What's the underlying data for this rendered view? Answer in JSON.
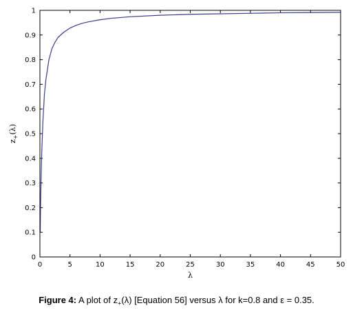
{
  "chart_data": {
    "type": "line",
    "title": "",
    "xlabel": "λ",
    "ylabel_base": "z",
    "ylabel_sub": "+",
    "ylabel_arg": "(λ)",
    "xlim": [
      0,
      50
    ],
    "ylim": [
      0,
      1
    ],
    "xticks": [
      0,
      5,
      10,
      15,
      20,
      25,
      30,
      35,
      40,
      45,
      50
    ],
    "yticks": [
      0,
      0.1,
      0.2,
      0.3,
      0.4,
      0.5,
      0.6,
      0.7,
      0.8,
      0.9,
      1
    ],
    "xtick_labels": [
      "0",
      "5",
      "10",
      "15",
      "20",
      "25",
      "30",
      "35",
      "40",
      "45",
      "50"
    ],
    "ytick_labels": [
      "0",
      "0.1",
      "0.2",
      "0.3",
      "0.4",
      "0.5",
      "0.6",
      "0.7",
      "0.8",
      "0.9",
      "1"
    ],
    "grid": false,
    "series": [
      {
        "line_color": "#3b3b8f",
        "x": [
          0.05,
          0.1,
          0.2,
          0.3,
          0.5,
          0.75,
          1,
          1.5,
          2,
          2.5,
          3,
          4,
          5,
          6,
          7,
          8,
          10,
          12,
          15,
          20,
          25,
          30,
          35,
          40,
          45,
          50
        ],
        "y": [
          0.1,
          0.2,
          0.32,
          0.42,
          0.55,
          0.66,
          0.72,
          0.8,
          0.845,
          0.87,
          0.89,
          0.912,
          0.928,
          0.939,
          0.947,
          0.953,
          0.962,
          0.968,
          0.974,
          0.98,
          0.984,
          0.986,
          0.988,
          0.99,
          0.991,
          0.992
        ]
      }
    ]
  },
  "caption": {
    "label": "Figure 4:",
    "text_before": " A plot of z",
    "text_sub": "+",
    "text_after": "(λ) [Equation 56] versus λ for k=0.8 and ε = 0.35."
  }
}
